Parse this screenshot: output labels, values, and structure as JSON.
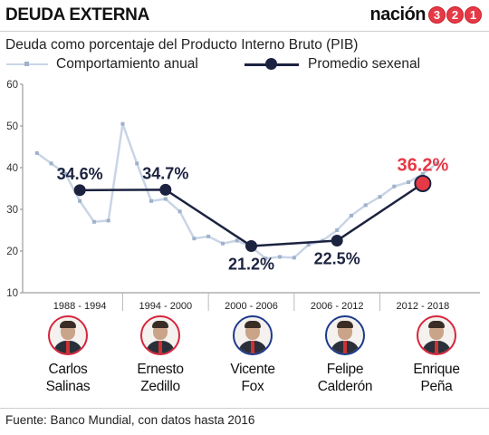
{
  "header": {
    "title": "DEUDA EXTERNA",
    "brand_word": "nación",
    "brand_digits": [
      "3",
      "2",
      "1"
    ]
  },
  "chart_data": {
    "type": "line",
    "title": "Deuda como porcentaje del Producto Interno Bruto (PIB)",
    "ylim": [
      10,
      60
    ],
    "yticks": [
      10,
      20,
      30,
      40,
      50,
      60
    ],
    "grid": true,
    "legend_placement": "top",
    "series": [
      {
        "name": "Comportamiento anual",
        "color": "#c9d5e6",
        "x": [
          1988,
          1989,
          1990,
          1991,
          1992,
          1993,
          1994,
          1995,
          1996,
          1997,
          1998,
          1999,
          2000,
          2001,
          2002,
          2003,
          2004,
          2005,
          2006,
          2007,
          2008,
          2009,
          2010,
          2011,
          2012,
          2013,
          2014,
          2015,
          2016
        ],
        "values": [
          43.5,
          41,
          38.5,
          32,
          27,
          27.3,
          50.5,
          41,
          32,
          32.5,
          29.5,
          23,
          23.5,
          21.8,
          22.5,
          21,
          18.2,
          18.6,
          18.4,
          21.5,
          22.5,
          25,
          28.5,
          31,
          33,
          35.5,
          36.5,
          38.5,
          41
        ]
      },
      {
        "name": "Promedio sexenal",
        "color": "#1c2340",
        "x": [
          1991,
          1997,
          2003,
          2009,
          2015
        ],
        "values": [
          34.6,
          34.7,
          21.2,
          22.5,
          36.2
        ],
        "labels": [
          "34.6%",
          "34.7%",
          "21.2%",
          "22.5%",
          "36.2%"
        ],
        "highlight_color": "#e63946"
      }
    ],
    "periods": [
      "1988 - 1994",
      "1994 - 2000",
      "2000 - 2006",
      "2006 - 2012",
      "2012 - 2018"
    ]
  },
  "presidents": [
    {
      "first": "Carlos",
      "last": "Salinas"
    },
    {
      "first": "Ernesto",
      "last": "Zedillo"
    },
    {
      "first": "Vicente",
      "last": "Fox"
    },
    {
      "first": "Felipe",
      "last": "Calderón"
    },
    {
      "first": "Enrique",
      "last": "Peña"
    }
  ],
  "footer": {
    "source": "Fuente: Banco Mundial, con datos hasta 2016"
  }
}
